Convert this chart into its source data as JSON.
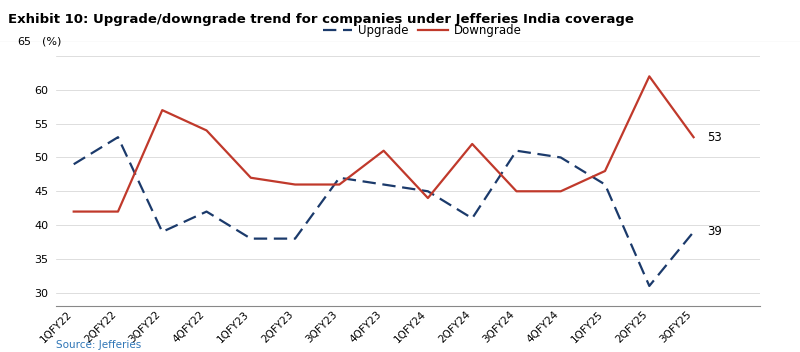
{
  "categories": [
    "1QFY22",
    "2QFY22",
    "3QFY22",
    "4QFY22",
    "1QFY23",
    "2QFY23",
    "3QFY23",
    "4QFY23",
    "1QFY24",
    "2QFY24",
    "3QFY24",
    "4QFY24",
    "1QFY25",
    "2QFY25",
    "3QFY25"
  ],
  "upgrade": [
    49,
    53,
    39,
    42,
    38,
    38,
    47,
    46,
    45,
    41,
    51,
    50,
    46,
    31,
    39
  ],
  "downgrade": [
    42,
    42,
    57,
    54,
    47,
    46,
    46,
    51,
    44,
    52,
    45,
    45,
    48,
    62,
    53
  ],
  "upgrade_color": "#1b3a6b",
  "downgrade_color": "#c0392b",
  "title": "Exhibit 10: Upgrade/downgrade trend for companies under Jefferies India coverage",
  "ylim_min": 28,
  "ylim_max": 66,
  "yticks": [
    30,
    35,
    40,
    45,
    50,
    55,
    60,
    65
  ],
  "source": "Source: Jefferies",
  "source_color": "#2e75b6",
  "annotation_upgrade": "39",
  "annotation_downgrade": "53",
  "bg_color": "#ffffff"
}
